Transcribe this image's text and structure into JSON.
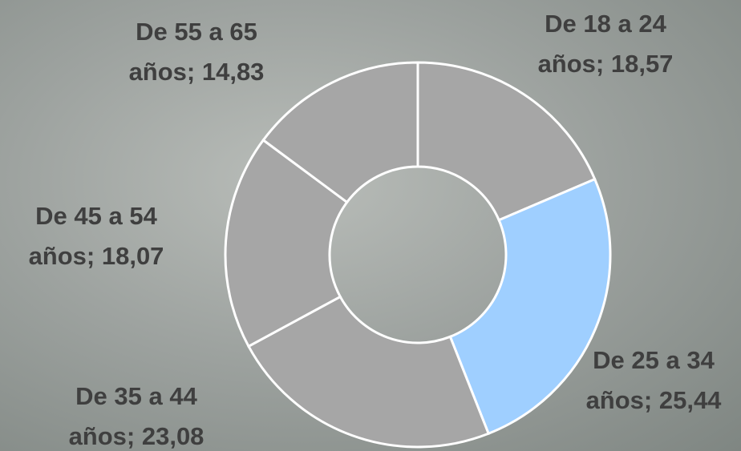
{
  "chart_data": {
    "type": "donut",
    "values": [
      18.57,
      25.44,
      23.08,
      18.07,
      14.83
    ],
    "value_labels": [
      "De 18 a 24 años; 18,57",
      "De 25 a 34 años; 25,44",
      "De 35 a 44 años; 23,08",
      "De 45 a 54 años; 18,07",
      "De 55 a 65 años; 14,83"
    ],
    "colors": [
      "#a6a6a6",
      "#9fcfff",
      "#a6a6a6",
      "#a6a6a6",
      "#a6a6a6"
    ]
  }
}
